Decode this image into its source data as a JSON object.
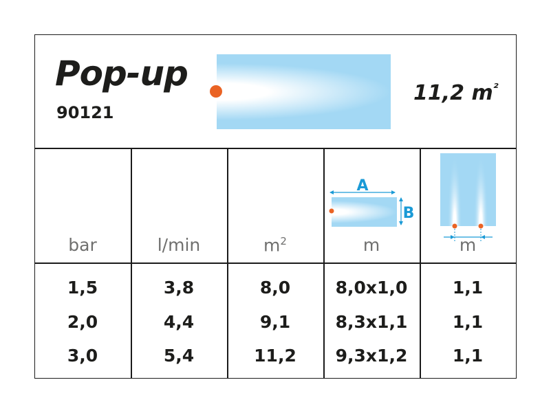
{
  "product": {
    "name": "Pop-up",
    "code": "90121",
    "coverage": "11,2 m²",
    "coverage_value": "11,2 m",
    "coverage_sup": "²"
  },
  "colors": {
    "spray": "#a3d8f4",
    "nozzle": "#ea6324",
    "dimension": "#1a9ad6",
    "text": "#1d1d1b"
  },
  "columns": [
    {
      "unit": "bar"
    },
    {
      "unit": "l/min"
    },
    {
      "unit": "m",
      "sup": "2"
    },
    {
      "unit": "m",
      "diagram": "spray-dimensions-icon",
      "label_a": "A",
      "label_b": "B"
    },
    {
      "unit": "m",
      "diagram": "nozzle-spacing-icon"
    }
  ],
  "rows": [
    [
      "1,5",
      "3,8",
      "8,0",
      "8,0x1,0",
      "1,1"
    ],
    [
      "2,0",
      "4,4",
      "9,1",
      "8,3x1,1",
      "1,1"
    ],
    [
      "3,0",
      "5,4",
      "11,2",
      "9,3x1,2",
      "1,1"
    ]
  ]
}
